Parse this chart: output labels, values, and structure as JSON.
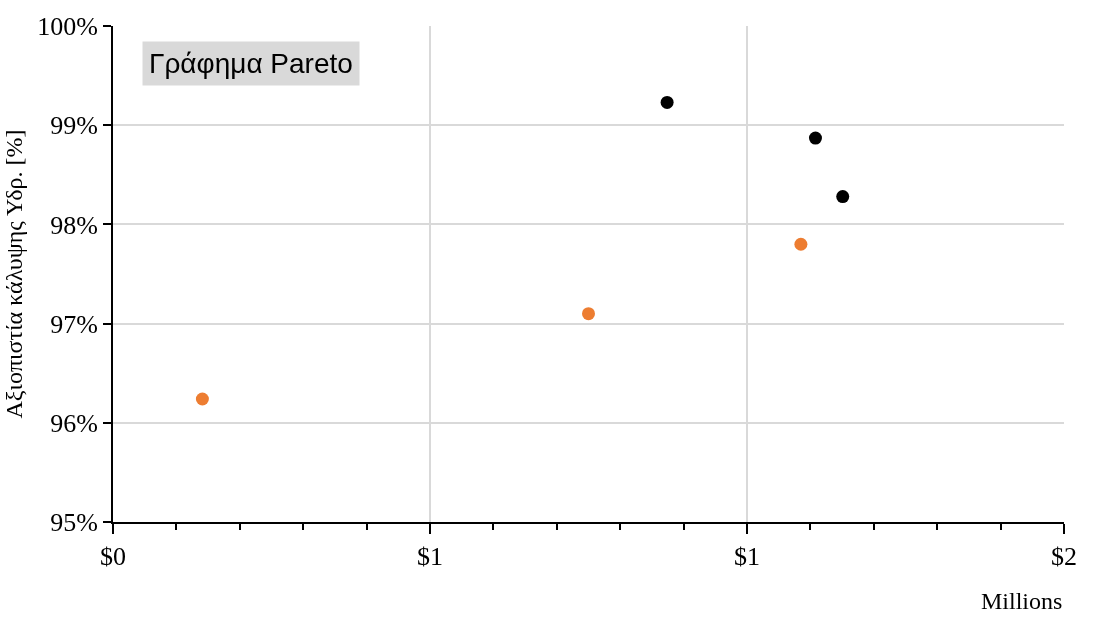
{
  "chart_data": {
    "type": "scatter",
    "title": "Γράφημα Pareto",
    "xlabel": "Millions",
    "ylabel": "Αξιοπιστία κάλυψης Υδρ. [%]",
    "series": [
      {
        "color": "#ed7d31",
        "x": [
          0.141,
          0.75,
          1.085
        ],
        "values": [
          96.24,
          97.1,
          97.8
        ]
      },
      {
        "color": "#000000",
        "x": [
          0.874,
          1.108,
          1.151
        ],
        "values": [
          99.23,
          98.87,
          98.28
        ]
      }
    ],
    "xlim": [
      0,
      1.5
    ],
    "xticks": [
      {
        "value": 0,
        "label": "$0"
      },
      {
        "value": 0.1,
        "label": null
      },
      {
        "value": 0.2,
        "label": null
      },
      {
        "value": 0.3,
        "label": null
      },
      {
        "value": 0.4,
        "label": null
      },
      {
        "value": 0.5,
        "label": "$1"
      },
      {
        "value": 0.6,
        "label": null
      },
      {
        "value": 0.7,
        "label": null
      },
      {
        "value": 0.8,
        "label": null
      },
      {
        "value": 0.9,
        "label": null
      },
      {
        "value": 1.0,
        "label": "$1"
      },
      {
        "value": 1.1,
        "label": null
      },
      {
        "value": 1.2,
        "label": null
      },
      {
        "value": 1.3,
        "label": null
      },
      {
        "value": 1.4,
        "label": null
      },
      {
        "value": 1.5,
        "label": "$2"
      }
    ],
    "ylim": [
      95,
      100
    ],
    "yticks": [
      {
        "value": 95,
        "label": "95%"
      },
      {
        "value": 96,
        "label": "96%"
      },
      {
        "value": 97,
        "label": "97%"
      },
      {
        "value": 98,
        "label": "98%"
      },
      {
        "value": 99,
        "label": "99%"
      },
      {
        "value": 100,
        "label": "100%"
      }
    ],
    "grid": true,
    "marker": "circle"
  }
}
